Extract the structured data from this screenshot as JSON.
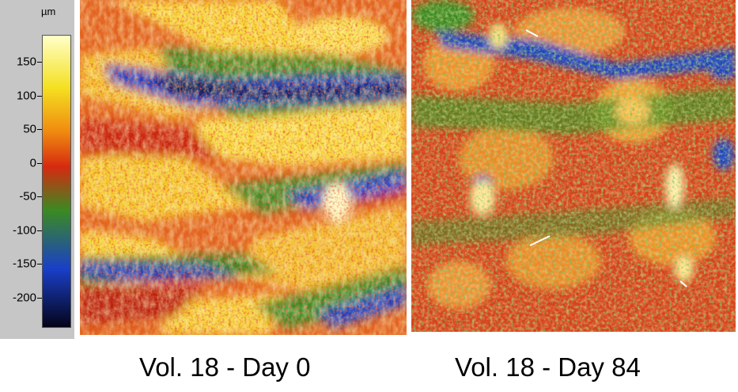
{
  "color_scale": {
    "unit": "µm",
    "ticks": [
      "150",
      "100",
      "50",
      "0",
      "-50",
      "-100",
      "-150",
      "-200"
    ],
    "colors": {
      "high": "#ffffc8",
      "yellow": "#f4e020",
      "orange": "#f08a10",
      "red": "#d62a10",
      "green": "#3a8a22",
      "blue": "#1a3fc8",
      "low": "#040418"
    }
  },
  "images": [
    {
      "caption": "Vol. 18 - Day 0"
    },
    {
      "caption": "Vol. 18 - Day 84"
    }
  ]
}
